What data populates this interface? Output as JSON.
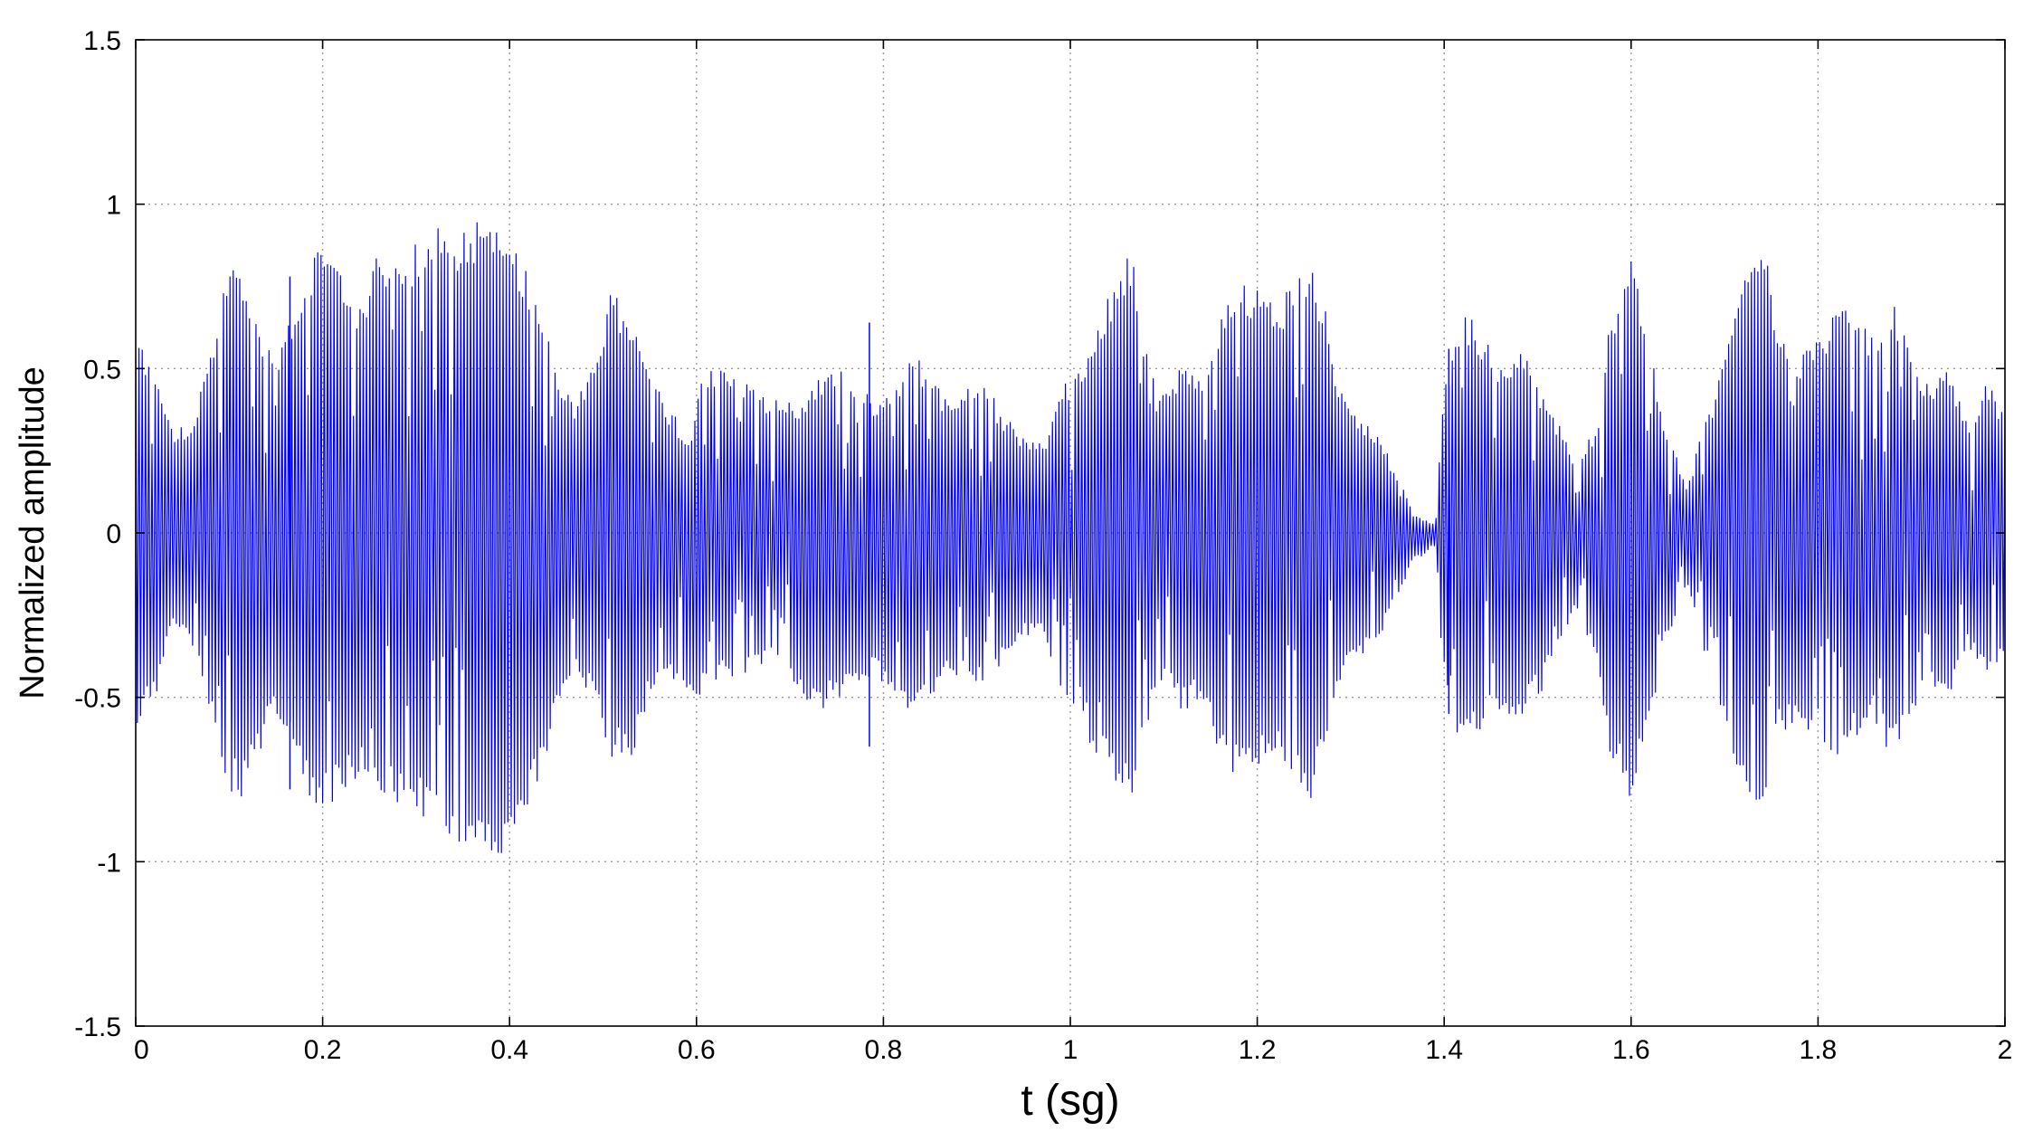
{
  "chart_data": {
    "type": "line",
    "title": "",
    "xlabel": "t (sg)",
    "ylabel": "Normalized amplitude",
    "xlim": [
      0,
      2
    ],
    "ylim": [
      -1.5,
      1.5
    ],
    "x_ticks": [
      0,
      0.2,
      0.4,
      0.6,
      0.8,
      1,
      1.2,
      1.4,
      1.6,
      1.8,
      2
    ],
    "x_tick_labels": [
      "0",
      "0.2",
      "0.4",
      "0.6",
      "0.8",
      "1",
      "1.2",
      "1.4",
      "1.6",
      "1.8",
      "2"
    ],
    "y_ticks": [
      1.5,
      1,
      0.5,
      0,
      -0.5,
      -1,
      -1.5
    ],
    "y_tick_labels": [
      "1.5",
      "1",
      "0.5",
      "0",
      "-0.5",
      "-1",
      "-1.5"
    ],
    "grid": true,
    "series_color": "#0000ff",
    "envelope": {
      "t": [
        0.0,
        0.02,
        0.04,
        0.06,
        0.08,
        0.1,
        0.11,
        0.13,
        0.15,
        0.17,
        0.19,
        0.2,
        0.22,
        0.24,
        0.26,
        0.28,
        0.3,
        0.32,
        0.34,
        0.36,
        0.38,
        0.39,
        0.41,
        0.43,
        0.45,
        0.47,
        0.49,
        0.51,
        0.53,
        0.55,
        0.57,
        0.59,
        0.61,
        0.63,
        0.65,
        0.67,
        0.69,
        0.71,
        0.73,
        0.75,
        0.77,
        0.79,
        0.81,
        0.83,
        0.85,
        0.87,
        0.89,
        0.91,
        0.93,
        0.95,
        0.97,
        0.99,
        1.01,
        1.03,
        1.05,
        1.065,
        1.08,
        1.1,
        1.12,
        1.14,
        1.16,
        1.18,
        1.2,
        1.22,
        1.24,
        1.255,
        1.27,
        1.29,
        1.31,
        1.33,
        1.35,
        1.37,
        1.39,
        1.4,
        1.42,
        1.44,
        1.46,
        1.48,
        1.5,
        1.52,
        1.54,
        1.56,
        1.58,
        1.6,
        1.62,
        1.64,
        1.66,
        1.68,
        1.7,
        1.72,
        1.74,
        1.76,
        1.78,
        1.8,
        1.82,
        1.84,
        1.86,
        1.88,
        1.9,
        1.92,
        1.94,
        1.96,
        1.98,
        2.0
      ],
      "upper": [
        0.6,
        0.5,
        0.32,
        0.33,
        0.55,
        0.8,
        0.84,
        0.65,
        0.55,
        0.7,
        0.85,
        0.86,
        0.8,
        0.72,
        0.85,
        0.83,
        0.88,
        0.94,
        0.92,
        0.96,
        0.98,
        1.0,
        0.85,
        0.75,
        0.5,
        0.4,
        0.55,
        0.73,
        0.65,
        0.5,
        0.38,
        0.3,
        0.5,
        0.52,
        0.48,
        0.42,
        0.42,
        0.38,
        0.48,
        0.5,
        0.48,
        0.4,
        0.45,
        0.55,
        0.5,
        0.4,
        0.45,
        0.45,
        0.35,
        0.3,
        0.28,
        0.45,
        0.5,
        0.65,
        0.78,
        0.86,
        0.62,
        0.45,
        0.5,
        0.48,
        0.65,
        0.8,
        0.75,
        0.7,
        0.78,
        0.84,
        0.7,
        0.45,
        0.35,
        0.3,
        0.18,
        0.05,
        0.03,
        0.45,
        0.68,
        0.62,
        0.5,
        0.58,
        0.45,
        0.35,
        0.22,
        0.3,
        0.65,
        0.85,
        0.55,
        0.3,
        0.15,
        0.35,
        0.55,
        0.78,
        0.94,
        0.6,
        0.55,
        0.6,
        0.7,
        0.65,
        0.6,
        0.7,
        0.55,
        0.45,
        0.5,
        0.35,
        0.45,
        0.38
      ],
      "lower": [
        -0.58,
        -0.5,
        -0.3,
        -0.35,
        -0.55,
        -0.78,
        -0.82,
        -0.68,
        -0.55,
        -0.68,
        -0.82,
        -0.85,
        -0.8,
        -0.75,
        -0.82,
        -0.84,
        -0.86,
        -0.92,
        -0.95,
        -0.94,
        -0.97,
        -1.0,
        -0.92,
        -0.78,
        -0.55,
        -0.42,
        -0.5,
        -0.7,
        -0.68,
        -0.52,
        -0.45,
        -0.5,
        -0.5,
        -0.44,
        -0.44,
        -0.42,
        -0.4,
        -0.52,
        -0.54,
        -0.52,
        -0.46,
        -0.44,
        -0.48,
        -0.54,
        -0.5,
        -0.44,
        -0.46,
        -0.46,
        -0.4,
        -0.32,
        -0.3,
        -0.5,
        -0.55,
        -0.72,
        -0.76,
        -0.85,
        -0.6,
        -0.45,
        -0.55,
        -0.5,
        -0.7,
        -0.75,
        -0.73,
        -0.68,
        -0.75,
        -0.83,
        -0.65,
        -0.45,
        -0.38,
        -0.32,
        -0.2,
        -0.08,
        -0.04,
        -0.45,
        -0.66,
        -0.6,
        -0.55,
        -0.58,
        -0.5,
        -0.38,
        -0.25,
        -0.35,
        -0.7,
        -0.84,
        -0.55,
        -0.32,
        -0.18,
        -0.38,
        -0.58,
        -0.8,
        -0.93,
        -0.62,
        -0.58,
        -0.62,
        -0.68,
        -0.62,
        -0.58,
        -0.68,
        -0.55,
        -0.46,
        -0.52,
        -0.36,
        -0.44,
        -0.38
      ]
    },
    "spikes": [
      {
        "t": 0.165,
        "low": -0.78,
        "high": 0.78
      },
      {
        "t": 0.785,
        "low": -0.65,
        "high": 0.64
      },
      {
        "t": 1.405,
        "low": -0.55,
        "high": 0.56
      }
    ]
  }
}
